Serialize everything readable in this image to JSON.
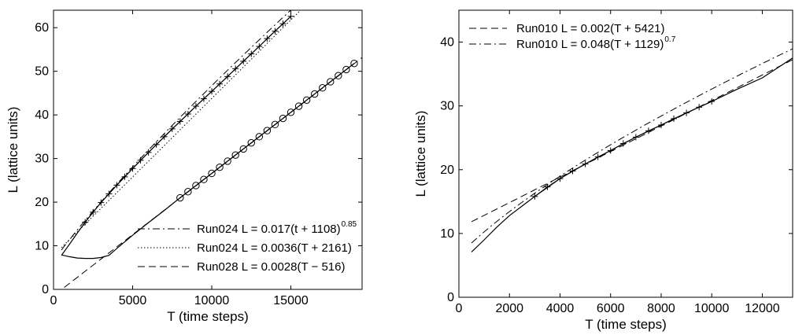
{
  "chart_data": [
    {
      "type": "line",
      "xlabel": "T (time steps)",
      "ylabel": "L (lattice units)",
      "xlim": [
        0,
        19500
      ],
      "ylim": [
        0,
        64
      ],
      "xticks": [
        0,
        5000,
        10000,
        15000
      ],
      "yticks": [
        0,
        10,
        20,
        30,
        40,
        50,
        60
      ],
      "legend_position": "bottom-right",
      "legend": [
        {
          "text": "Run024 L = 0.017(t + 1108)",
          "sup": "0.85",
          "style": "dashdot"
        },
        {
          "text": "Run024 L = 0.0036(T + 2161)",
          "sup": "",
          "style": "dotted"
        },
        {
          "text": "Run028 L = 0.0028(T − 516)",
          "sup": "",
          "style": "dashed"
        }
      ],
      "series": [
        {
          "marker": "plus",
          "x": [
            2000,
            2500,
            3000,
            3500,
            4000,
            4500,
            5000,
            5500,
            6000,
            6500,
            7000,
            7500,
            8000,
            8500,
            9000,
            9500,
            10000,
            10500,
            11000,
            11500,
            12000,
            12500,
            13000,
            13500,
            14000,
            14500,
            15000
          ],
          "y": [
            15.4,
            17.7,
            19.9,
            21.9,
            23.9,
            25.8,
            27.7,
            29.6,
            31.4,
            33.2,
            35.0,
            36.8,
            38.5,
            40.2,
            42.0,
            43.7,
            45.4,
            47.1,
            48.8,
            50.6,
            52.3,
            54.0,
            55.7,
            57.5,
            59.2,
            60.9,
            62.6
          ]
        },
        {
          "marker": "circle",
          "x": [
            8000,
            8500,
            9000,
            9500,
            10000,
            10500,
            11000,
            11500,
            12000,
            12500,
            13000,
            13500,
            14000,
            14500,
            15000,
            15500,
            16000,
            16500,
            17000,
            17500,
            18000,
            18500,
            19000
          ],
          "y": [
            21.0,
            22.4,
            23.8,
            25.2,
            26.6,
            28.0,
            29.4,
            30.8,
            32.2,
            33.6,
            35.0,
            36.4,
            37.8,
            39.2,
            40.6,
            42.0,
            43.4,
            44.8,
            46.2,
            47.6,
            49.0,
            50.4,
            51.8
          ]
        },
        {
          "style": "solid",
          "x": [
            500,
            1000,
            1500,
            2000,
            2500,
            3000,
            3500,
            4000,
            5000,
            6000,
            7000,
            8000,
            9000,
            10000,
            11000,
            12000,
            13000,
            14000,
            15000
          ],
          "y": [
            7.8,
            10.3,
            12.9,
            15.4,
            17.7,
            19.9,
            21.9,
            23.9,
            27.7,
            31.4,
            35.0,
            38.5,
            42.0,
            45.4,
            48.8,
            52.3,
            55.7,
            59.2,
            62.6
          ]
        },
        {
          "style": "solid",
          "x": [
            500,
            1000,
            1500,
            2000,
            2500,
            3000,
            3500,
            4000,
            5000,
            6000,
            7000,
            8000,
            9000,
            10000,
            12000,
            14000,
            16000,
            18000,
            19000
          ],
          "y": [
            7.9,
            7.5,
            7.2,
            7.1,
            7.1,
            7.3,
            7.8,
            9.4,
            12.4,
            15.3,
            18.1,
            21.0,
            23.8,
            26.6,
            32.2,
            37.8,
            43.4,
            49.0,
            51.8
          ]
        }
      ],
      "fits": [
        {
          "style": "dashdot",
          "a": 0.017,
          "b": 1108,
          "p": 0.85,
          "x_start": 500
        },
        {
          "style": "dotted",
          "a": 0.0036,
          "b": 2161,
          "p": 1,
          "x_start": 500
        },
        {
          "style": "dashed",
          "a": 0.0028,
          "b": -516,
          "p": 1,
          "x_start": 516
        }
      ]
    },
    {
      "type": "line",
      "xlabel": "T (time steps)",
      "ylabel": "L (lattice units)",
      "xlim": [
        0,
        13200
      ],
      "ylim": [
        0,
        45
      ],
      "xticks": [
        0,
        2000,
        4000,
        6000,
        8000,
        10000,
        12000
      ],
      "yticks": [
        0,
        10,
        20,
        30,
        40
      ],
      "legend_position": "top-left",
      "legend": [
        {
          "text": "Run010 L = 0.002(T + 5421)",
          "sup": "",
          "style": "dashed"
        },
        {
          "text": "Run010 L = 0.048(T + 1129)",
          "sup": "0.7",
          "style": "dashdot"
        }
      ],
      "series": [
        {
          "marker": "plus",
          "x": [
            3000,
            3500,
            4000,
            4500,
            5000,
            5500,
            6000,
            6500,
            7000,
            7500,
            8000,
            8500,
            9000,
            9500,
            10000
          ],
          "y": [
            15.8,
            17.3,
            18.6,
            19.8,
            20.9,
            22.0,
            23.0,
            24.1,
            25.1,
            26.1,
            27.0,
            28.0,
            28.9,
            29.8,
            30.7
          ]
        },
        {
          "style": "solid",
          "x": [
            500,
            1000,
            1500,
            2000,
            2500,
            3000,
            4000,
            5000,
            6000,
            7000,
            8000,
            9000,
            10000,
            11000,
            12000,
            13200
          ],
          "y": [
            7.1,
            9.0,
            11.0,
            12.8,
            14.3,
            15.8,
            18.6,
            20.9,
            23.0,
            25.1,
            27.0,
            28.9,
            30.7,
            32.6,
            34.4,
            37.5
          ]
        }
      ],
      "fits": [
        {
          "style": "dashed",
          "a": 0.002,
          "b": 5421,
          "p": 1.0,
          "x_start": 500
        },
        {
          "style": "dashdot",
          "a": 0.048,
          "b": 1129,
          "p": 0.7,
          "x_start": 500
        }
      ]
    }
  ]
}
